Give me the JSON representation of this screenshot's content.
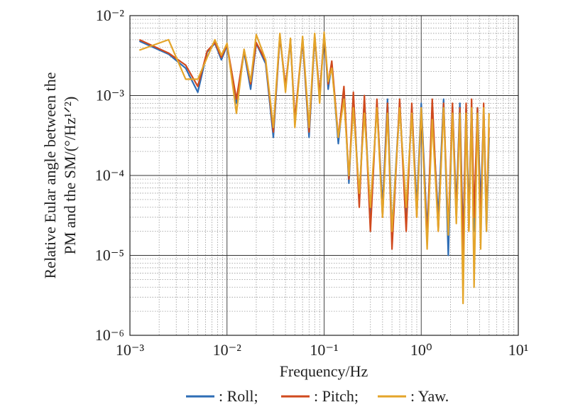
{
  "chart_data": {
    "type": "line",
    "xlabel": "Frequency/Hz",
    "ylabel": [
      "Relative Eular angle between the",
      "PM and the SM/(°/Hz¹ᐟ²)"
    ],
    "xscale": "log",
    "yscale": "log",
    "grid": true,
    "minor_grid": true,
    "legend": "bottom",
    "xlim": [
      0.001,
      10
    ],
    "ylim": [
      1e-06,
      0.01
    ],
    "xticks": [
      {
        "value": 0.001,
        "label": "10⁻³"
      },
      {
        "value": 0.01,
        "label": "10⁻²"
      },
      {
        "value": 0.1,
        "label": "10⁻¹"
      },
      {
        "value": 1,
        "label": "10⁰"
      },
      {
        "value": 10,
        "label": "10¹"
      }
    ],
    "yticks": [
      {
        "value": 1e-06,
        "label": "10⁻⁶"
      },
      {
        "value": 1e-05,
        "label": "10⁻⁵"
      },
      {
        "value": 0.0001,
        "label": "10⁻⁴"
      },
      {
        "value": 0.001,
        "label": "10⁻³"
      },
      {
        "value": 0.01,
        "label": "10⁻²"
      }
    ],
    "x": [
      0.00125,
      0.0025,
      0.00375,
      0.005,
      0.00625,
      0.0075,
      0.00875,
      0.01,
      0.0125,
      0.015,
      0.0175,
      0.02,
      0.025,
      0.03,
      0.035,
      0.04,
      0.045,
      0.05,
      0.06,
      0.07,
      0.08,
      0.09,
      0.1,
      0.11,
      0.12,
      0.14,
      0.16,
      0.18,
      0.2,
      0.23,
      0.26,
      0.3,
      0.35,
      0.4,
      0.45,
      0.5,
      0.6,
      0.7,
      0.8,
      0.9,
      1.0,
      1.15,
      1.3,
      1.5,
      1.7,
      1.9,
      2.1,
      2.3,
      2.5,
      2.7,
      2.9,
      3.1,
      3.3,
      3.5,
      3.8,
      4.1,
      4.4,
      4.7,
      5.0
    ],
    "series": [
      {
        "name": ": Roll;",
        "color": "#2e6db5",
        "values": [
          0.0048,
          0.0033,
          0.0022,
          0.0011,
          0.0035,
          0.0045,
          0.0028,
          0.0042,
          0.0008,
          0.0035,
          0.0012,
          0.0045,
          0.0025,
          0.0003,
          0.0055,
          0.0012,
          0.0048,
          0.00045,
          0.005,
          0.0003,
          0.0055,
          0.0009,
          0.006,
          0.0012,
          0.0025,
          0.00025,
          0.0012,
          8e-05,
          0.001,
          5e-05,
          0.0009,
          3e-05,
          0.0008,
          4e-05,
          0.0009,
          2e-05,
          0.0008,
          3e-05,
          0.0007,
          4e-05,
          0.0008,
          2e-05,
          0.0006,
          3e-05,
          0.0009,
          1e-05,
          0.0007,
          4e-05,
          0.0008,
          1.5e-05,
          0.0007,
          3e-05,
          0.0008,
          2e-05,
          0.0007,
          4e-05,
          0.0006,
          2e-05,
          0.0003
        ]
      },
      {
        "name": ": Pitch;",
        "color": "#d04a1e",
        "values": [
          0.005,
          0.0034,
          0.0024,
          0.0013,
          0.0036,
          0.0046,
          0.003,
          0.0043,
          0.0009,
          0.0037,
          0.0014,
          0.0046,
          0.0027,
          0.00035,
          0.0056,
          0.0013,
          0.005,
          0.0005,
          0.0052,
          0.00035,
          0.0057,
          0.001,
          0.0058,
          0.0014,
          0.0027,
          0.0003,
          0.0013,
          9e-05,
          0.0011,
          4e-05,
          0.001,
          2e-05,
          0.0009,
          3e-05,
          0.0008,
          1.2e-05,
          0.0009,
          2e-05,
          0.0008,
          3e-05,
          0.0007,
          1.5e-05,
          0.0009,
          2e-05,
          0.0008,
          2e-05,
          0.0008,
          3e-05,
          0.0007,
          1e-05,
          0.0008,
          2e-05,
          0.0009,
          3e-05,
          0.0007,
          2e-05,
          0.0008,
          3e-05,
          0.0004
        ]
      },
      {
        "name": ": Yaw.",
        "color": "#e4a52a",
        "values": [
          0.0037,
          0.005,
          0.0016,
          0.0016,
          0.003,
          0.005,
          0.0032,
          0.0045,
          0.0006,
          0.0038,
          0.0015,
          0.0058,
          0.0028,
          0.0004,
          0.006,
          0.0011,
          0.0052,
          0.0004,
          0.0055,
          0.0004,
          0.006,
          0.0008,
          0.0062,
          0.0015,
          0.0022,
          0.0003,
          0.0009,
          0.0001,
          0.0007,
          6e-05,
          0.0006,
          4e-05,
          0.0007,
          3e-05,
          0.0006,
          2e-05,
          0.0007,
          4e-05,
          0.0006,
          3e-05,
          0.0007,
          1.2e-05,
          0.0005,
          2e-05,
          0.0007,
          1.8e-05,
          0.0006,
          2.5e-05,
          0.0006,
          2.5e-06,
          0.0006,
          2e-05,
          0.0007,
          4e-06,
          0.0006,
          1.2e-05,
          0.0007,
          2e-05,
          0.0006
        ]
      }
    ]
  }
}
